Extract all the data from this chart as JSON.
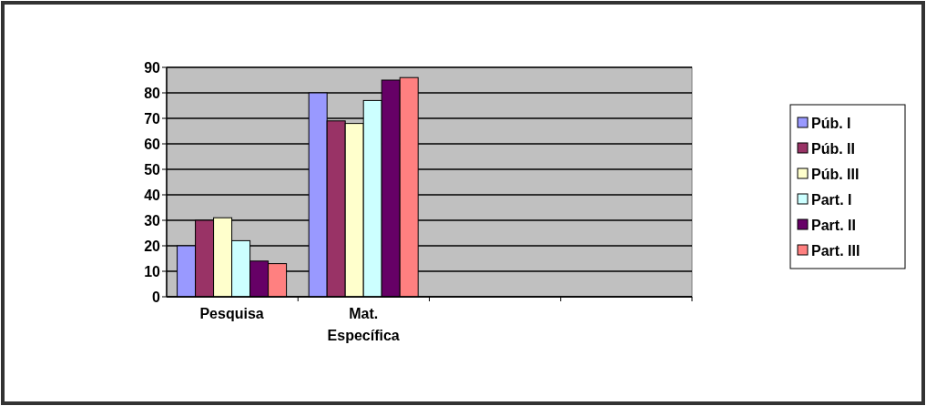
{
  "chart_data": {
    "type": "bar",
    "categories": [
      "Pesquisa",
      "Mat. Específica",
      null,
      null
    ],
    "series": [
      {
        "name": "Púb. I",
        "color": "#9999ff",
        "values": [
          20,
          80,
          null,
          null
        ]
      },
      {
        "name": "Púb. II",
        "color": "#993366",
        "values": [
          30,
          69,
          null,
          null
        ]
      },
      {
        "name": "Púb. III",
        "color": "#ffffcc",
        "values": [
          31,
          68,
          null,
          null
        ]
      },
      {
        "name": "Part. I",
        "color": "#ccffff",
        "values": [
          22,
          77,
          null,
          null
        ]
      },
      {
        "name": "Part. II",
        "color": "#660066",
        "values": [
          14,
          85,
          null,
          null
        ]
      },
      {
        "name": "Part. III",
        "color": "#ff8080",
        "values": [
          13,
          86,
          null,
          null
        ]
      }
    ],
    "ylim": [
      0,
      90
    ],
    "yticks": [
      0,
      10,
      20,
      30,
      40,
      50,
      60,
      70,
      80,
      90
    ],
    "grid": "y",
    "legend": "right"
  }
}
